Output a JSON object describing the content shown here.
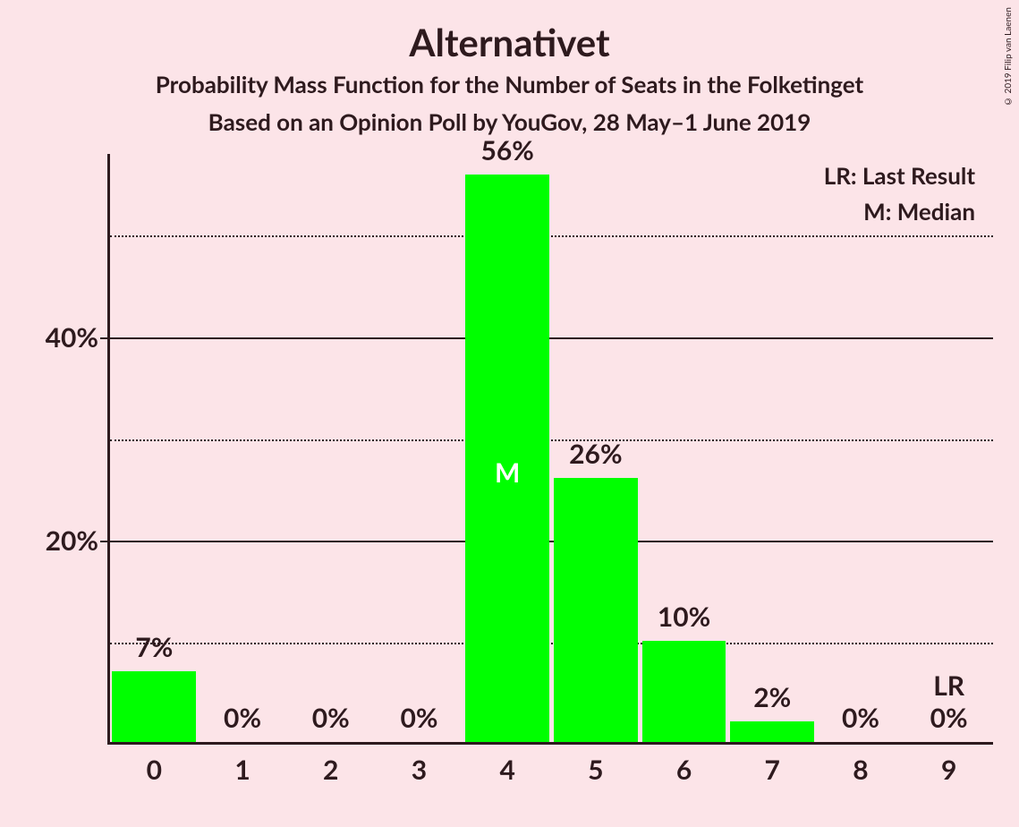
{
  "title": "Alternativet",
  "subtitle1": "Probability Mass Function for the Number of Seats in the Folketinget",
  "subtitle2": "Based on an Opinion Poll by YouGov, 28 May–1 June 2019",
  "copyright": "© 2019 Filip van Laenen",
  "chart": {
    "type": "bar",
    "background_color": "#fce4e8",
    "text_color": "#2e1a1e",
    "bar_color": "#00ff00",
    "median_label_color": "#ffffff",
    "ymax_percent": 58,
    "y_major_ticks": [
      20,
      40
    ],
    "y_minor_ticks": [
      10,
      30,
      50
    ],
    "categories": [
      "0",
      "1",
      "2",
      "3",
      "4",
      "5",
      "6",
      "7",
      "8",
      "9"
    ],
    "values_percent": [
      7,
      0,
      0,
      0,
      56,
      26,
      10,
      2,
      0,
      0
    ],
    "value_labels": [
      "7%",
      "0%",
      "0%",
      "0%",
      "56%",
      "26%",
      "10%",
      "2%",
      "0%",
      "0%"
    ],
    "median_index": 4,
    "median_marker": "M",
    "last_result_index": 9,
    "last_result_marker": "LR",
    "bar_width_ratio": 0.95,
    "title_fontsize": 42,
    "subtitle_fontsize": 26,
    "axis_label_fontsize": 30,
    "value_label_fontsize": 30,
    "legend_fontsize": 26
  },
  "legend": {
    "lr": "LR: Last Result",
    "m": "M: Median"
  },
  "y_labels": {
    "t20": "20%",
    "t40": "40%"
  }
}
